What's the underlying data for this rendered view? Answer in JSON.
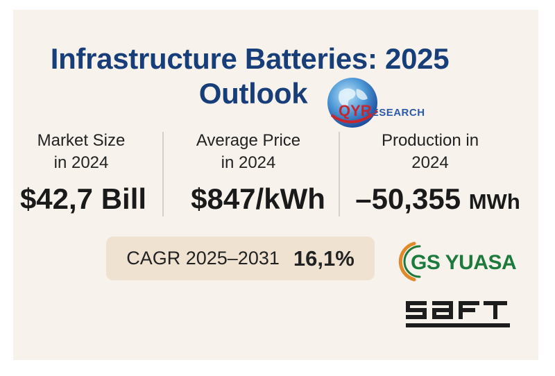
{
  "title": {
    "line1": "Infrastructure Batteries: 2025",
    "line2": "Outlook"
  },
  "logos": {
    "qyresearch": {
      "prefix": "QYR",
      "suffix": "ESEARCH"
    },
    "gs_yuasa": "GS YUASA",
    "saft": "SAFT"
  },
  "metrics": [
    {
      "label_line1": "Market Size",
      "label_line2": "in 2024",
      "value": "$42,7 Bill",
      "unit": ""
    },
    {
      "label_line1": "Average Price",
      "label_line2": "in 2024",
      "value": "$847/kWh",
      "unit": ""
    },
    {
      "label_line1": "Production in",
      "label_line2": "2024",
      "value": "–50,355",
      "unit": "MWh"
    }
  ],
  "cagr": {
    "label": "CAGR 2025–2031",
    "value": "16,1%"
  },
  "colors": {
    "title": "#173e78",
    "background": "#f7f3ec",
    "cagr_bg": "#efe2d1",
    "gs_green": "#1b7a3c",
    "qyr_red": "#c6262e",
    "qyr_blue": "#2a5aa8"
  }
}
